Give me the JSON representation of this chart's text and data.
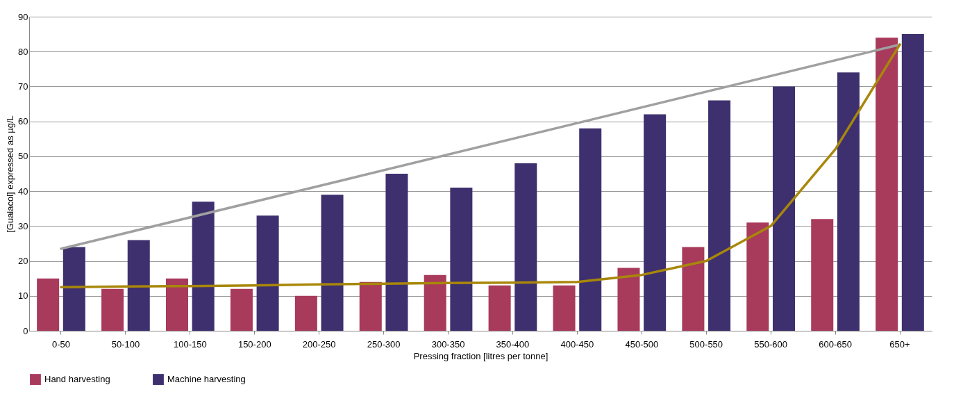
{
  "chart_data": {
    "type": "bar",
    "xlabel": "Pressing fraction [litres per tonne]",
    "ylabel": "[Guaiacol] expressed as µg/L",
    "categories": [
      "0-50",
      "50-100",
      "100-150",
      "150-200",
      "200-250",
      "250-300",
      "300-350",
      "350-400",
      "400-450",
      "450-500",
      "500-550",
      "550-600",
      "600-650",
      "650+"
    ],
    "series": [
      {
        "name": "Hand harvesting",
        "color": "#a83a5c",
        "values": [
          15,
          12,
          15,
          12,
          10,
          14,
          16,
          13,
          13,
          18,
          24,
          31,
          32,
          84
        ]
      },
      {
        "name": "Machine harvesting",
        "color": "#3e306e",
        "values": [
          24,
          26,
          37,
          33,
          39,
          45,
          41,
          48,
          58,
          62,
          66,
          70,
          74,
          85
        ]
      },
      {
        "type": "line",
        "color": "#a0a0a0",
        "x": [
          "0-50",
          "650+"
        ],
        "values": [
          23.5,
          82
        ]
      },
      {
        "type": "line",
        "color": "#a8870a",
        "values": [
          12.5,
          12.7,
          12.8,
          13,
          13.3,
          13.5,
          13.7,
          13.8,
          14,
          16,
          20,
          30,
          52,
          82
        ]
      }
    ],
    "ylim": [
      0,
      90
    ],
    "yticks": [
      0,
      10,
      20,
      30,
      40,
      50,
      60,
      70,
      80,
      90
    ],
    "grid": "y",
    "legend": "bottom",
    "marker": "none",
    "line_style": "solid"
  }
}
